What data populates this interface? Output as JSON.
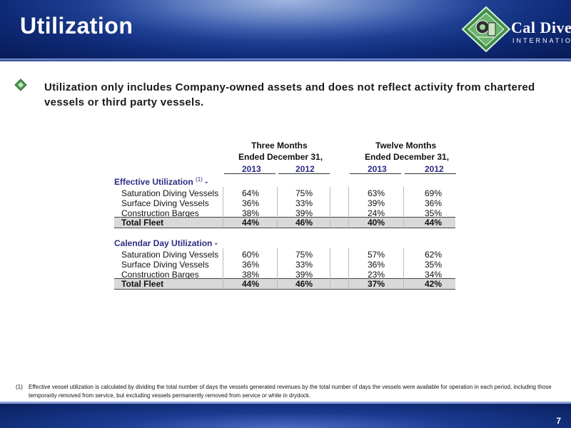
{
  "slide": {
    "title": "Utilization",
    "page_number": "7"
  },
  "logo": {
    "name": "Cal Dive",
    "sub": "INTERNATIONAL"
  },
  "bullet": {
    "text": "Utilization only includes Company-owned assets and does not reflect activity from chartered vessels or third party vessels."
  },
  "table": {
    "group_headers": [
      {
        "line1": "Three Months",
        "line2": "Ended December 31,"
      },
      {
        "line1": "Twelve Months",
        "line2": "Ended December 31,"
      }
    ],
    "years": [
      "2013",
      "2012",
      "2013",
      "2012"
    ],
    "sections": [
      {
        "title": "Effective Utilization",
        "title_sup": "(1)",
        "title_suffix": "-",
        "rows": [
          {
            "label": "Saturation Diving Vessels",
            "values": [
              "64%",
              "75%",
              "63%",
              "69%"
            ]
          },
          {
            "label": "Surface Diving Vessels",
            "values": [
              "36%",
              "33%",
              "39%",
              "36%"
            ]
          },
          {
            "label": "Construction Barges",
            "values": [
              "38%",
              "39%",
              "24%",
              "35%"
            ]
          }
        ],
        "total": {
          "label": "Total Fleet",
          "values": [
            "44%",
            "46%",
            "40%",
            "44%"
          ]
        }
      },
      {
        "title": "Calendar Day Utilization -",
        "rows": [
          {
            "label": "Saturation Diving Vessels",
            "values": [
              "60%",
              "75%",
              "57%",
              "62%"
            ]
          },
          {
            "label": "Surface Diving Vessels",
            "values": [
              "36%",
              "33%",
              "36%",
              "35%"
            ]
          },
          {
            "label": "Construction Barges",
            "values": [
              "38%",
              "39%",
              "23%",
              "34%"
            ]
          }
        ],
        "total": {
          "label": "Total Fleet",
          "values": [
            "44%",
            "46%",
            "37%",
            "42%"
          ]
        }
      }
    ]
  },
  "footnote": {
    "number": "(1)",
    "text": "Effective vessel utilization is calculated by dividing the total number of days the vessels generated revenues by the total number of days the vessels were available for operation in each period, including those temporarily removed from service, but excluding vessels permanently removed from service or while in drydock."
  },
  "colors": {
    "header_dark": "#0f2a78",
    "section_title": "#2c2c86",
    "total_row_bg": "#d9d9d9"
  }
}
